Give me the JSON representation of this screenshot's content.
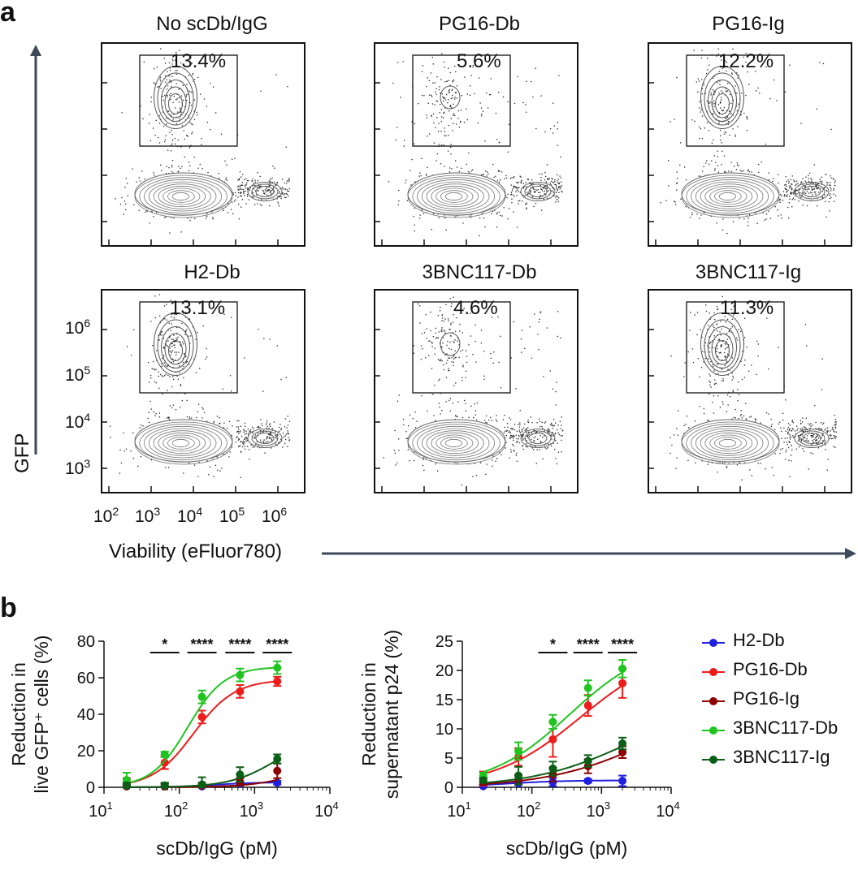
{
  "panel_labels": {
    "a": "a",
    "b": "b"
  },
  "flow_panels": [
    {
      "title": "No scDb/IgG",
      "gate": "13.4%",
      "top_density": "high"
    },
    {
      "title": "PG16-Db",
      "gate": "5.6%",
      "top_density": "low"
    },
    {
      "title": "PG16-Ig",
      "gate": "12.2%",
      "top_density": "high"
    },
    {
      "title": "H2-Db",
      "gate": "13.1%",
      "top_density": "high"
    },
    {
      "title": "3BNC117-Db",
      "gate": "4.6%",
      "top_density": "low"
    },
    {
      "title": "3BNC117-Ig",
      "gate": "11.3%",
      "top_density": "high"
    }
  ],
  "flow_axes": {
    "y_label": "GFP",
    "x_label": "Viability (eFluor780)",
    "y_ticks": [
      {
        "base": "10",
        "exp": "6"
      },
      {
        "base": "10",
        "exp": "5"
      },
      {
        "base": "10",
        "exp": "4"
      },
      {
        "base": "10",
        "exp": "3"
      }
    ],
    "x_ticks": [
      {
        "base": "10",
        "exp": "2"
      },
      {
        "base": "10",
        "exp": "3"
      },
      {
        "base": "10",
        "exp": "4"
      },
      {
        "base": "10",
        "exp": "5"
      },
      {
        "base": "10",
        "exp": "6"
      }
    ]
  },
  "colors": {
    "H2-Db": "#1f1fe0",
    "PG16-Db": "#ee1b1b",
    "PG16-Ig": "#8b0000",
    "3BNC117-Db": "#1fc41f",
    "3BNC117-Ig": "#0b5e16"
  },
  "legend": [
    "H2-Db",
    "PG16-Db",
    "PG16-Ig",
    "3BNC117-Db",
    "3BNC117-Ig"
  ],
  "chart_data": [
    {
      "type": "line",
      "x_scale": "log",
      "xlabel": "scDb/IgG (pM)",
      "ylabel": "Reduction in live GFP⁺ cells (%)",
      "ylabel_lines": [
        "Reduction in",
        "live GFP⁺ cells (%)"
      ],
      "xlim": [
        10,
        10000
      ],
      "ylim": [
        0,
        80
      ],
      "yticks": [
        "0",
        "20",
        "40",
        "60",
        "80"
      ],
      "xticks": [
        {
          "base": "10",
          "exp": "1"
        },
        {
          "base": "10",
          "exp": "2"
        },
        {
          "base": "10",
          "exp": "3"
        },
        {
          "base": "10",
          "exp": "4"
        }
      ],
      "x": [
        20,
        64,
        200,
        640,
        2000
      ],
      "series": [
        {
          "name": "H2-Db",
          "values": [
            0.5,
            0.5,
            0.5,
            2,
            2.5
          ],
          "errors": [
            1,
            1.5,
            1,
            1,
            1
          ],
          "fit": {
            "bottom": 0,
            "top": 2.8,
            "ec50": 300,
            "hill": 1.5
          }
        },
        {
          "name": "PG16-Db",
          "values": [
            2,
            13.5,
            38.5,
            52.5,
            58
          ],
          "errors": [
            3,
            3.5,
            3.5,
            3.5,
            2.5
          ],
          "fit": {
            "bottom": 0,
            "top": 59,
            "ec50": 155,
            "hill": 1.6
          }
        },
        {
          "name": "PG16-Ig",
          "values": [
            0.5,
            0.5,
            1,
            3,
            9
          ],
          "errors": [
            1,
            1.5,
            1.5,
            2,
            4
          ],
          "fit": {
            "bottom": 0,
            "top": 40,
            "ec50": 12000,
            "hill": 1.2
          }
        },
        {
          "name": "3BNC117-Db",
          "values": [
            4,
            18,
            49.5,
            61.5,
            65.5
          ],
          "errors": [
            4,
            1.5,
            3.5,
            3.5,
            3.5
          ],
          "fit": {
            "bottom": 0,
            "top": 66,
            "ec50": 130,
            "hill": 1.8
          }
        },
        {
          "name": "3BNC117-Ig",
          "values": [
            1,
            1,
            1.5,
            7,
            15.5
          ],
          "errors": [
            1.5,
            1.5,
            4,
            4,
            2.5
          ],
          "fit": {
            "bottom": 0,
            "top": 30,
            "ec50": 2000,
            "hill": 1.4
          }
        }
      ],
      "significance": [
        {
          "x": 64,
          "label": "*"
        },
        {
          "x": 200,
          "label": "****"
        },
        {
          "x": 640,
          "label": "****"
        },
        {
          "x": 2000,
          "label": "****"
        }
      ]
    },
    {
      "type": "line",
      "x_scale": "log",
      "xlabel": "scDb/IgG (pM)",
      "ylabel": "Reduction in supernatant p24 (%)",
      "ylabel_lines": [
        "Reduction in",
        "supernatant p24 (%)"
      ],
      "xlim": [
        10,
        10000
      ],
      "ylim": [
        0,
        25
      ],
      "yticks": [
        "0",
        "5",
        "10",
        "15",
        "20",
        "25"
      ],
      "xticks": [
        {
          "base": "10",
          "exp": "1"
        },
        {
          "base": "10",
          "exp": "2"
        },
        {
          "base": "10",
          "exp": "3"
        },
        {
          "base": "10",
          "exp": "4"
        }
      ],
      "x": [
        20,
        64,
        200,
        640,
        2000
      ],
      "series": [
        {
          "name": "H2-Db",
          "values": [
            0.2,
            0.7,
            0.9,
            1.1,
            1.1
          ],
          "errors": [
            0.3,
            0.3,
            0.7,
            0.3,
            0.9
          ],
          "fit": {
            "bottom": 0,
            "top": 1.2,
            "ec50": 40,
            "hill": 1.0
          }
        },
        {
          "name": "PG16-Db",
          "values": [
            1.5,
            5.2,
            8.2,
            14.0,
            17.8
          ],
          "errors": [
            1.2,
            1.5,
            3.0,
            1.8,
            2.5
          ],
          "fit": {
            "bottom": 0,
            "top": 24,
            "ec50": 500,
            "hill": 0.7
          }
        },
        {
          "name": "PG16-Ig",
          "values": [
            1,
            1.3,
            2.2,
            3.6,
            6.0
          ],
          "errors": [
            0.6,
            0.8,
            1.2,
            1.2,
            1.0
          ],
          "fit": {
            "bottom": 0,
            "top": 15,
            "ec50": 4500,
            "hill": 0.6
          }
        },
        {
          "name": "3BNC117-Db",
          "values": [
            2.0,
            6.2,
            11.2,
            17.0,
            20.3
          ],
          "errors": [
            0.5,
            1.5,
            1.2,
            1.3,
            1.5
          ],
          "fit": {
            "bottom": 0,
            "top": 25,
            "ec50": 350,
            "hill": 0.75
          }
        },
        {
          "name": "3BNC117-Ig",
          "values": [
            1.2,
            2.0,
            3.2,
            4.5,
            7.5
          ],
          "errors": [
            0.4,
            1.5,
            1.2,
            1.0,
            1.0
          ],
          "fit": {
            "bottom": 0,
            "top": 16,
            "ec50": 3000,
            "hill": 0.6
          }
        }
      ],
      "significance": [
        {
          "x": 200,
          "label": "*"
        },
        {
          "x": 640,
          "label": "****"
        },
        {
          "x": 2000,
          "label": "****"
        }
      ]
    }
  ]
}
